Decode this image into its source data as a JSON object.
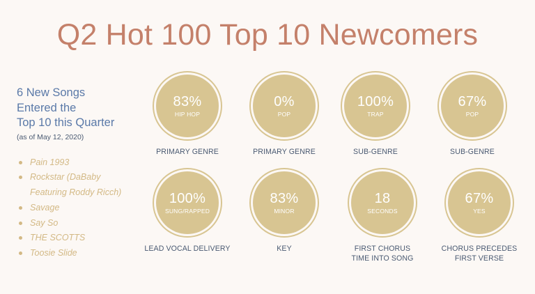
{
  "title": "Q2 Hot 100 Top 10 Newcomers",
  "intro": {
    "line1": "6 New Songs",
    "line2": "Entered the",
    "line3": "Top 10 this Quarter",
    "as_of": "(as of May 12, 2020)"
  },
  "songs": [
    {
      "line1": "Pain 1993"
    },
    {
      "line1": "Rockstar (DaBaby",
      "line2": "Featuring Roddy Ricch)"
    },
    {
      "line1": "Savage"
    },
    {
      "line1": "Say So"
    },
    {
      "line1": "THE SCOTTS"
    },
    {
      "line1": "Toosie Slide"
    }
  ],
  "stats": [
    {
      "value": "83%",
      "sub": "HIP HOP",
      "label1": "PRIMARY GENRE",
      "label2": ""
    },
    {
      "value": "0%",
      "sub": "POP",
      "label1": "PRIMARY GENRE",
      "label2": ""
    },
    {
      "value": "100%",
      "sub": "TRAP",
      "label1": "SUB-GENRE",
      "label2": ""
    },
    {
      "value": "67%",
      "sub": "POP",
      "label1": "SUB-GENRE",
      "label2": ""
    },
    {
      "value": "100%",
      "sub": "SUNG/RAPPED",
      "label1": "LEAD VOCAL DELIVERY",
      "label2": ""
    },
    {
      "value": "83%",
      "sub": "MINOR",
      "label1": "KEY",
      "label2": ""
    },
    {
      "value": "18",
      "sub": "SECONDS",
      "label1": "FIRST CHORUS",
      "label2": "TIME INTO SONG"
    },
    {
      "value": "67%",
      "sub": "YES",
      "label1": "CHORUS PRECEDES",
      "label2": "FIRST VERSE"
    }
  ],
  "colors": {
    "background": "#fcf8f5",
    "title": "#c4806a",
    "headline": "#5a79a8",
    "circle": "#d8c592",
    "song_text": "#d3b985",
    "label_text": "#4a5a72"
  }
}
